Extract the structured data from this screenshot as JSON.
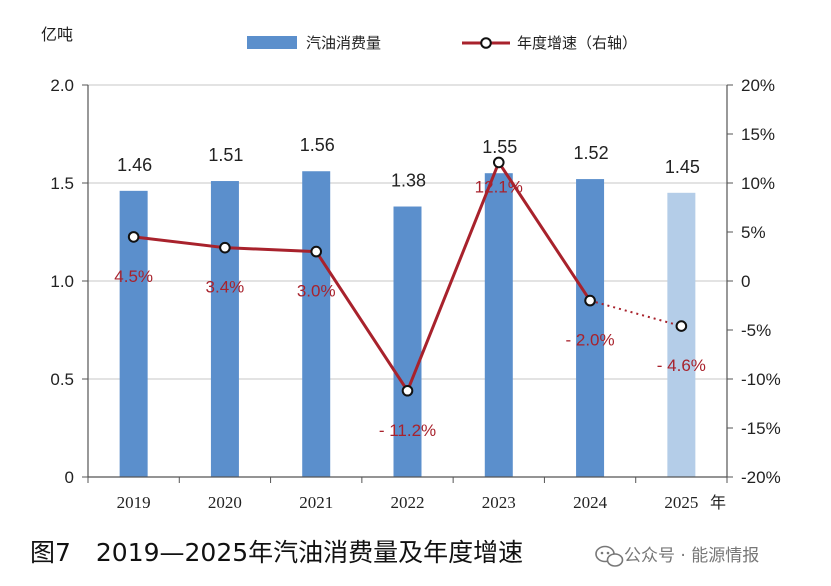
{
  "chart_data": {
    "type": "bar+line",
    "categories": [
      "2019",
      "2020",
      "2021",
      "2022",
      "2023",
      "2024",
      "2025"
    ],
    "x_unit": "年",
    "y_left_unit": "亿吨",
    "y_left_ticks": [
      "0",
      "0.5",
      "1.0",
      "1.5",
      "2.0"
    ],
    "y_left_range": [
      0,
      2.0
    ],
    "y_right_ticks": [
      "-20%",
      "-15%",
      "-10%",
      "-5%",
      "0",
      "5%",
      "10%",
      "15%",
      "20%"
    ],
    "y_right_range": [
      -20,
      20
    ],
    "grid": "horizontal",
    "legend_position": "top",
    "series": [
      {
        "name": "汽油消费量",
        "type": "bar",
        "axis": "left",
        "values": [
          1.46,
          1.51,
          1.56,
          1.38,
          1.55,
          1.52,
          1.45
        ],
        "labels": [
          "1.46",
          "1.51",
          "1.56",
          "1.38",
          "1.55",
          "1.52",
          "1.45"
        ],
        "color": "#5b8fcc",
        "forecast_color": "#b4cde8",
        "forecast_from_index": 6
      },
      {
        "name": "年度增速（右轴）",
        "type": "line",
        "axis": "right",
        "values": [
          4.5,
          3.4,
          3.0,
          -11.2,
          12.1,
          -2.0,
          -4.6
        ],
        "labels": [
          "4.5%",
          "3.4%",
          "3.0%",
          "- 11.2%",
          "12.1%",
          "- 2.0%",
          "- 4.6%"
        ],
        "color": "#a8222c",
        "dotted_from_index": 5
      }
    ]
  },
  "caption": "图7　2019—2025年汽油消费量及年度增速",
  "watermark": "公众号 · 能源情报"
}
